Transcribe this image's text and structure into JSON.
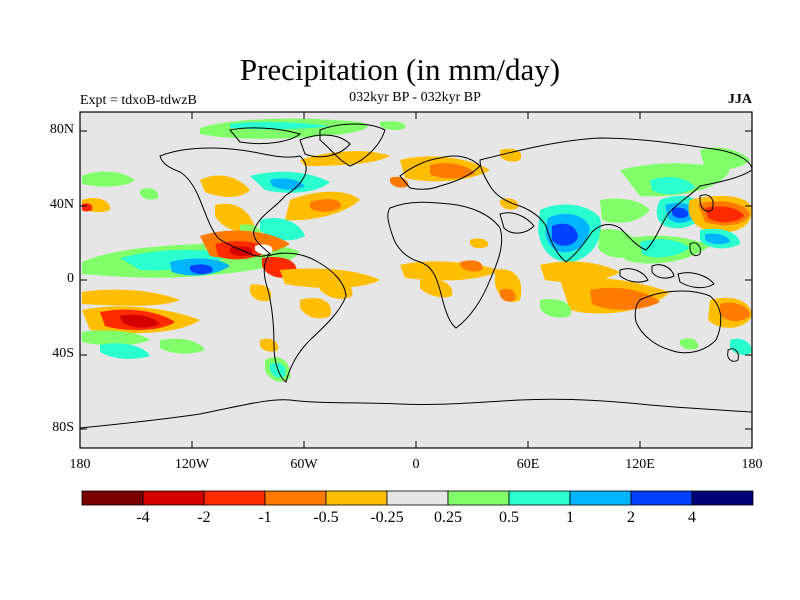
{
  "title": "Precipitation (in mm/day)",
  "subtitle_left": "Expt = tdxoB-tdwzB",
  "subtitle_center": "032kyr BP - 032kyr BP",
  "subtitle_right": "JJA",
  "axes": {
    "lat_labels": [
      "80N",
      "40N",
      "0",
      "40S",
      "80S"
    ],
    "lon_labels": [
      "180",
      "120W",
      "60W",
      "0",
      "60E",
      "120E",
      "180"
    ]
  },
  "colorbar": {
    "labels": [
      "-4",
      "-2",
      "-1",
      "-0.5",
      "-0.25",
      "0.25",
      "0.5",
      "1",
      "2",
      "4"
    ],
    "colors": [
      "#7a0000",
      "#d40000",
      "#ff2a00",
      "#ff7a00",
      "#ffbf00",
      "#e6e6e6",
      "#80ff6a",
      "#2affd0",
      "#00b4ff",
      "#0040ff",
      "#000078"
    ]
  },
  "colors": {
    "ocean_background": "#e6e6e6",
    "coastline": "#000000"
  }
}
